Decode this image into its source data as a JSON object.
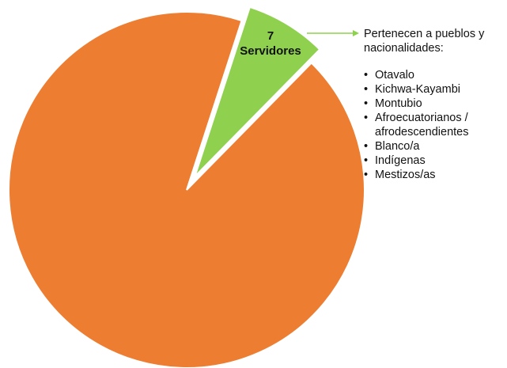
{
  "chart_data": {
    "type": "pie",
    "slices": [
      {
        "label": "7 Servidores",
        "value": 7,
        "color": "#8fd14f",
        "exploded": true
      },
      {
        "label": "",
        "value": 88,
        "color": "#ed7d31",
        "exploded": false
      }
    ],
    "annotation": {
      "heading": "Pertenecen a pueblos y nacionalidades:",
      "items": [
        "Otavalo",
        "Kichwa-Kayambi",
        "Montubio",
        "Afroecuatorianos / afrodescendientes",
        "Blanco/a",
        "Indígenas",
        "Mestizos/as"
      ]
    },
    "callout": {
      "line_color": "#8fd14f",
      "connects": "exploded slice to annotation"
    }
  },
  "slice_label": {
    "count": "7",
    "label": "Servidores"
  }
}
